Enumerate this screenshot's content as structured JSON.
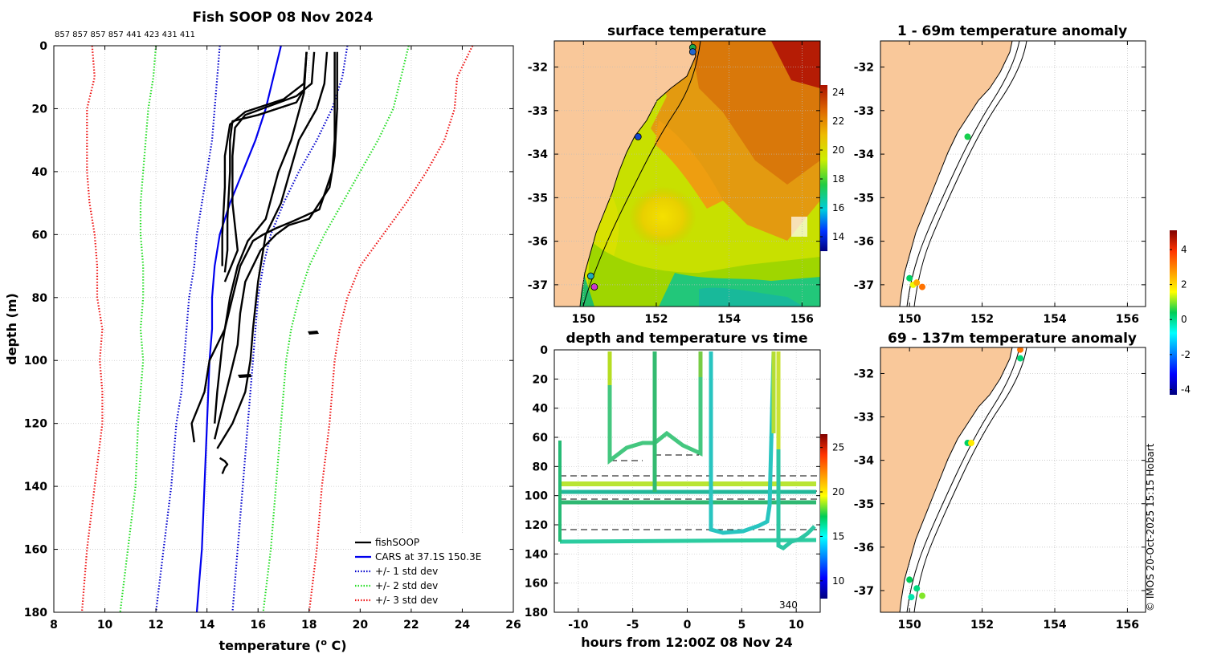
{
  "figure": {
    "copyright": "© IMOS 20-Oct-2025 15:15 Hobart",
    "colors": {
      "land": "#f9c89a",
      "ocean_white": "#ffffff",
      "grid": "#c8c8c8"
    }
  },
  "chart_data": [
    {
      "id": "profile",
      "type": "line",
      "title": "Fish SOOP 08 Nov 2024",
      "subtitle": "857 857 857 857 441 423 431 411",
      "xlabel": "temperature (°C)",
      "xlabel_main": "temperature (",
      "xlabel_sup": "o",
      "xlabel_end": " C)",
      "ylabel": "depth (m)",
      "xlim": [
        8,
        26
      ],
      "ylim": [
        0,
        180
      ],
      "y_reversed": true,
      "xticks": [
        "8",
        "10",
        "12",
        "14",
        "16",
        "18",
        "20",
        "22",
        "24",
        "26"
      ],
      "yticks": [
        "0",
        "20",
        "40",
        "60",
        "80",
        "100",
        "120",
        "140",
        "160",
        "180"
      ],
      "legend": [
        "fishSOOP",
        "CARS at 37.1S 150.3E",
        "+/- 1 std dev",
        "+/- 2 std dev",
        "+/- 3 std dev"
      ],
      "series": [
        {
          "name": "CARS at 37.1S 150.3E",
          "color": "#0000ee",
          "style": "solid",
          "t": [
            16.9,
            16.6,
            16.3,
            15.9,
            15.4,
            14.9,
            14.5,
            14.3,
            14.2,
            14.2,
            14.1,
            14.0,
            13.9,
            13.8,
            13.7,
            13.6
          ],
          "d": [
            0,
            10,
            20,
            30,
            40,
            50,
            60,
            70,
            80,
            90,
            100,
            120,
            140,
            160,
            170,
            180
          ]
        },
        {
          "name": "+1 std",
          "color": "#0000cc",
          "style": "dotted",
          "t": [
            19.5,
            19.3,
            18.9,
            18.3,
            17.6,
            17.0,
            16.5,
            16.2,
            16.0,
            15.9,
            15.8,
            15.7,
            15.6,
            15.4,
            15.2,
            15.0
          ],
          "d": [
            0,
            10,
            20,
            30,
            40,
            50,
            60,
            70,
            80,
            90,
            100,
            110,
            120,
            140,
            160,
            180
          ]
        },
        {
          "name": "-1 std",
          "color": "#0000cc",
          "style": "dotted",
          "t": [
            14.5,
            14.4,
            14.3,
            14.2,
            14.0,
            13.8,
            13.6,
            13.5,
            13.3,
            13.2,
            13.1,
            13.0,
            12.8,
            12.6,
            12.3,
            12.0
          ],
          "d": [
            0,
            10,
            20,
            30,
            40,
            50,
            60,
            70,
            80,
            90,
            100,
            110,
            120,
            140,
            160,
            180
          ]
        },
        {
          "name": "+2 std",
          "color": "#22dd22",
          "style": "dotted",
          "t": [
            21.9,
            21.6,
            21.3,
            20.7,
            20.0,
            19.3,
            18.6,
            18.0,
            17.6,
            17.3,
            17.1,
            17.0,
            16.9,
            16.7,
            16.5,
            16.2
          ],
          "d": [
            0,
            10,
            20,
            30,
            40,
            50,
            60,
            70,
            80,
            90,
            100,
            110,
            120,
            140,
            160,
            180
          ]
        },
        {
          "name": "-2 std",
          "color": "#22dd22",
          "style": "dotted",
          "t": [
            12.0,
            11.9,
            11.7,
            11.6,
            11.5,
            11.4,
            11.4,
            11.5,
            11.5,
            11.4,
            11.5,
            11.4,
            11.3,
            11.2,
            10.9,
            10.6
          ],
          "d": [
            0,
            10,
            20,
            30,
            40,
            50,
            60,
            70,
            80,
            90,
            100,
            110,
            120,
            140,
            160,
            180
          ]
        },
        {
          "name": "+3 std",
          "color": "#ee1111",
          "style": "dotted",
          "t": [
            24.4,
            23.8,
            23.7,
            23.3,
            22.6,
            21.8,
            20.9,
            20.0,
            19.5,
            19.2,
            19.0,
            18.9,
            18.8,
            18.5,
            18.3,
            18.0
          ],
          "d": [
            0,
            10,
            20,
            30,
            40,
            50,
            60,
            70,
            80,
            90,
            100,
            110,
            120,
            140,
            160,
            180
          ]
        },
        {
          "name": "-3 std",
          "color": "#ee1111",
          "style": "dotted",
          "t": [
            9.5,
            9.6,
            9.3,
            9.3,
            9.3,
            9.4,
            9.6,
            9.7,
            9.7,
            9.9,
            9.8,
            9.9,
            9.9,
            9.6,
            9.3,
            9.1
          ],
          "d": [
            0,
            10,
            20,
            30,
            40,
            50,
            60,
            70,
            80,
            90,
            100,
            110,
            120,
            140,
            160,
            180
          ]
        },
        {
          "name": "fishSOOP",
          "color": "#000000",
          "style": "solid",
          "casts": [
            {
              "t": [
                17.9,
                17.8,
                17.5,
                16.0,
                15.0,
                14.9,
                14.9,
                14.8,
                14.8,
                14.7
              ],
              "d": [
                2,
                14,
                18,
                22,
                24,
                30,
                40,
                55,
                65,
                72
              ]
            },
            {
              "t": [
                17.9,
                17.8,
                17.0,
                15.5,
                14.9,
                14.7,
                14.7,
                14.6,
                14.6
              ],
              "d": [
                2,
                12,
                17,
                21,
                25,
                35,
                45,
                60,
                70
              ]
            },
            {
              "t": [
                18.2,
                18.1,
                17.5,
                16.5,
                15.5,
                15.1,
                15.0,
                15.0,
                15.2,
                14.7
              ],
              "d": [
                2,
                12,
                16,
                19,
                22,
                26,
                35,
                50,
                65,
                75
              ]
            },
            {
              "t": [
                19.0,
                19.0,
                19.0,
                18.9,
                18.4,
                17.3,
                16.7,
                16.2,
                15.8,
                15.3,
                15.0,
                14.7,
                14.1,
                13.9,
                13.4,
                13.5
              ],
              "d": [
                2,
                20,
                30,
                40,
                52,
                56,
                58,
                60,
                62,
                70,
                80,
                90,
                100,
                110,
                120,
                126
              ]
            },
            {
              "t": [
                19.1,
                19.1,
                19.0,
                18.8,
                18.0,
                17.2,
                16.7,
                16.1,
                15.5,
                15.3,
                15.2,
                14.9,
                14.6,
                14.3
              ],
              "d": [
                2,
                20,
                35,
                45,
                55,
                57,
                60,
                65,
                75,
                85,
                95,
                105,
                115,
                125
              ]
            },
            {
              "t": [
                18.7,
                18.6,
                18.3,
                17.6,
                16.9,
                16.3,
                16.0,
                15.8,
                15.7,
                15.5,
                15.0,
                14.4
              ],
              "d": [
                2,
                12,
                20,
                30,
                50,
                60,
                75,
                90,
                100,
                110,
                120,
                128
              ]
            },
            {
              "t": [
                17.9,
                17.8,
                17.3,
                16.8,
                16.3,
                15.6,
                15.2,
                14.9,
                14.6,
                14.4,
                14.3
              ],
              "d": [
                2,
                15,
                30,
                40,
                55,
                62,
                70,
                80,
                95,
                110,
                120
              ]
            },
            {
              "t": [
                14.5,
                14.7,
                14.8,
                14.7,
                14.6
              ],
              "d": [
                131,
                132,
                133,
                134,
                136
              ]
            }
          ]
        }
      ]
    },
    {
      "id": "sst_map",
      "type": "heatmap",
      "title": "surface temperature",
      "xlim": [
        149.2,
        156.5
      ],
      "ylim": [
        -37.5,
        -31.4
      ],
      "xticks": [
        "150",
        "152",
        "154",
        "156"
      ],
      "yticks": [
        "-32",
        "-33",
        "-34",
        "-35",
        "-36",
        "-37"
      ],
      "colorbar_ticks": [
        "14",
        "16",
        "18",
        "20",
        "22",
        "24"
      ],
      "colorbar_range": [
        13,
        24.5
      ],
      "stations": [
        {
          "lon": 153.0,
          "lat": -31.55,
          "color": "#1aa84a"
        },
        {
          "lon": 153.0,
          "lat": -31.65,
          "color": "#2266cc"
        },
        {
          "lon": 151.5,
          "lat": -33.6,
          "color": "#1144cc"
        },
        {
          "lon": 150.2,
          "lat": -36.8,
          "color": "#22aabb"
        },
        {
          "lon": 150.3,
          "lat": -37.05,
          "color": "#cc33cc"
        }
      ]
    },
    {
      "id": "timeseries",
      "type": "scatter",
      "title": "depth and temperature vs time",
      "xlabel": "hours from 12:00Z 08 Nov 24",
      "xlim": [
        -12.2,
        12.2
      ],
      "ylim": [
        0,
        180
      ],
      "y_reversed": true,
      "xticks": [
        "-10",
        "-5",
        "0",
        "5",
        "10"
      ],
      "yticks": [
        "0",
        "20",
        "40",
        "60",
        "80",
        "100",
        "120",
        "140",
        "160",
        "180"
      ],
      "annotation": "340",
      "colorbar_ticks": [
        "10",
        "15",
        "20",
        "25"
      ],
      "colorbar_range": [
        8,
        26.5
      ]
    },
    {
      "id": "anom1",
      "type": "scatter",
      "title": "1 - 69m temperature anomaly",
      "xlim": [
        149.2,
        156.5
      ],
      "ylim": [
        -37.5,
        -31.4
      ],
      "xticks": [
        "150",
        "152",
        "154",
        "156"
      ],
      "yticks": [
        "-32",
        "-33",
        "-34",
        "-35",
        "-36",
        "-37"
      ],
      "points": [
        {
          "lon": 151.6,
          "lat": -33.6,
          "value": 0.5
        },
        {
          "lon": 150.0,
          "lat": -36.85,
          "value": 0.3
        },
        {
          "lon": 150.1,
          "lat": -37.0,
          "value": 1.5
        },
        {
          "lon": 150.2,
          "lat": -36.95,
          "value": 2.5
        },
        {
          "lon": 150.35,
          "lat": -37.05,
          "value": 3.2
        }
      ]
    },
    {
      "id": "anom2",
      "type": "scatter",
      "title": "69 - 137m temperature anomaly",
      "xlim": [
        149.2,
        156.5
      ],
      "ylim": [
        -37.5,
        -31.4
      ],
      "xticks": [
        "150",
        "152",
        "154",
        "156"
      ],
      "yticks": [
        "-32",
        "-33",
        "-34",
        "-35",
        "-36",
        "-37"
      ],
      "points": [
        {
          "lon": 153.05,
          "lat": -31.45,
          "value": 3.2
        },
        {
          "lon": 153.05,
          "lat": -31.65,
          "value": 0.2
        },
        {
          "lon": 151.6,
          "lat": -33.6,
          "value": 0.3
        },
        {
          "lon": 151.7,
          "lat": -33.6,
          "value": 1.8
        },
        {
          "lon": 150.0,
          "lat": -36.75,
          "value": 0.4
        },
        {
          "lon": 150.2,
          "lat": -36.95,
          "value": 0.1
        },
        {
          "lon": 150.05,
          "lat": -37.15,
          "value": -0.2
        },
        {
          "lon": 150.35,
          "lat": -37.12,
          "value": 1.0
        }
      ],
      "colorbar_ticks": [
        "-4",
        "-2",
        "0",
        "2",
        "4"
      ],
      "colorbar_range": [
        -4.3,
        5.1
      ]
    }
  ]
}
